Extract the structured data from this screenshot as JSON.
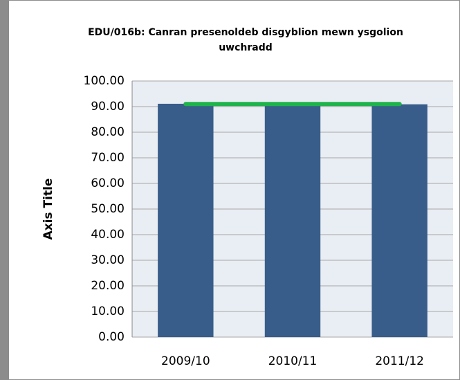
{
  "chart_data": {
    "type": "bar",
    "title": "EDU/016b: Canran presenoldeb disgyblion mewn ysgolion uwchradd",
    "y_label": "Axis Title",
    "categories": [
      "2009/10",
      "2010/11",
      "2011/12"
    ],
    "series": [
      {
        "type": "bar",
        "color": "#385d8a",
        "values": [
          91.1,
          90.6,
          90.9
        ]
      },
      {
        "type": "line",
        "color": "#1fb34b",
        "values": [
          91,
          91,
          91
        ]
      }
    ],
    "ylim": [
      0,
      100
    ],
    "yticks": [
      {
        "value": 0,
        "label": "0.00"
      },
      {
        "value": 10,
        "label": "10.00"
      },
      {
        "value": 20,
        "label": "20.00"
      },
      {
        "value": 30,
        "label": "30.00"
      },
      {
        "value": 40,
        "label": "40.00"
      },
      {
        "value": 50,
        "label": "50.00"
      },
      {
        "value": 60,
        "label": "60.00"
      },
      {
        "value": 70,
        "label": "70.00"
      },
      {
        "value": 80,
        "label": "80.00"
      },
      {
        "value": 90,
        "label": "90.00"
      },
      {
        "value": 100,
        "label": "100.00"
      }
    ],
    "grid": true
  }
}
